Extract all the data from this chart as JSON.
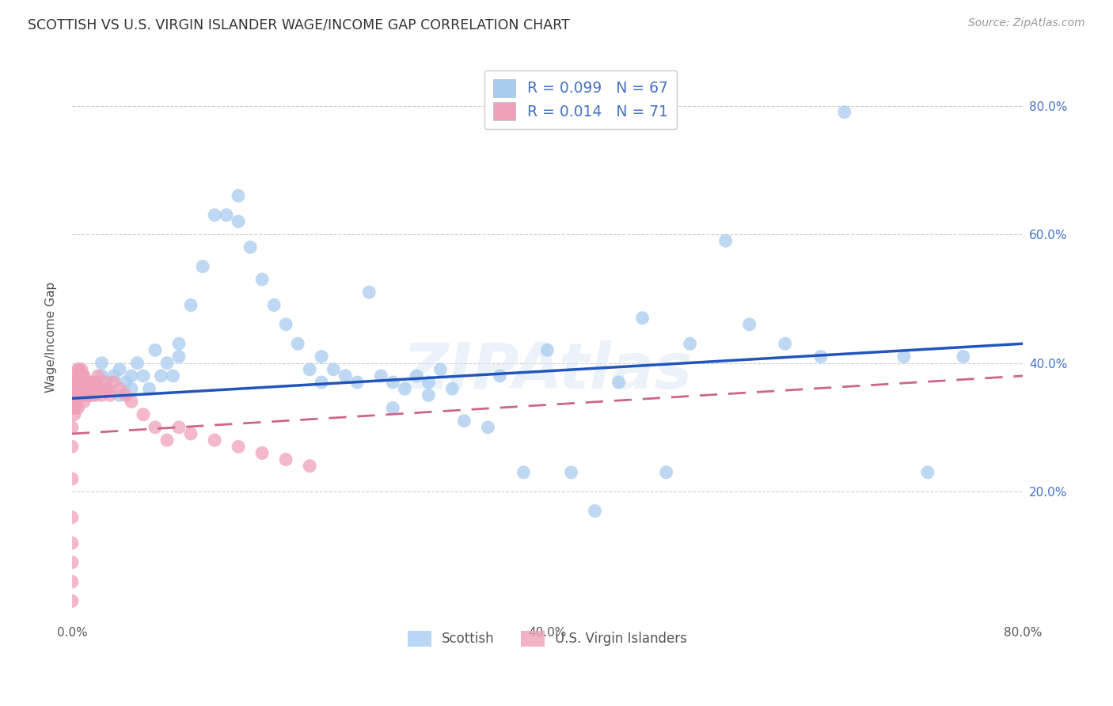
{
  "title": "SCOTTISH VS U.S. VIRGIN ISLANDER WAGE/INCOME GAP CORRELATION CHART",
  "source": "Source: ZipAtlas.com",
  "ylabel": "Wage/Income Gap",
  "blue_R": "0.099",
  "blue_N": "67",
  "pink_R": "0.014",
  "pink_N": "71",
  "blue_color": "#A8CCF0",
  "pink_color": "#F0A0B8",
  "blue_line_color": "#2255BB",
  "pink_line_color": "#CC6688",
  "legend_label_blue": "Scottish",
  "legend_label_pink": "U.S. Virgin Islanders",
  "ytick_values": [
    0.2,
    0.4,
    0.6,
    0.8
  ],
  "ytick_labels": [
    "20.0%",
    "40.0%",
    "60.0%",
    "80.0%"
  ],
  "xtick_values": [
    0.0,
    0.1,
    0.2,
    0.3,
    0.4,
    0.5,
    0.6,
    0.7,
    0.8
  ],
  "xtick_labels": [
    "0.0%",
    "",
    "",
    "",
    "40.0%",
    "",
    "",
    "",
    "80.0%"
  ],
  "xlim": [
    0.0,
    0.8
  ],
  "ylim": [
    0.0,
    0.88
  ],
  "blue_x": [
    0.01,
    0.015,
    0.02,
    0.025,
    0.025,
    0.03,
    0.035,
    0.04,
    0.04,
    0.045,
    0.05,
    0.05,
    0.055,
    0.06,
    0.065,
    0.07,
    0.075,
    0.08,
    0.085,
    0.09,
    0.09,
    0.1,
    0.11,
    0.12,
    0.13,
    0.14,
    0.14,
    0.15,
    0.16,
    0.17,
    0.18,
    0.19,
    0.2,
    0.21,
    0.21,
    0.22,
    0.23,
    0.24,
    0.25,
    0.26,
    0.27,
    0.27,
    0.28,
    0.29,
    0.3,
    0.3,
    0.31,
    0.32,
    0.33,
    0.35,
    0.36,
    0.38,
    0.4,
    0.42,
    0.44,
    0.46,
    0.48,
    0.5,
    0.52,
    0.55,
    0.57,
    0.6,
    0.63,
    0.65,
    0.7,
    0.72,
    0.75
  ],
  "blue_y": [
    0.36,
    0.35,
    0.37,
    0.4,
    0.38,
    0.36,
    0.38,
    0.35,
    0.39,
    0.37,
    0.38,
    0.36,
    0.4,
    0.38,
    0.36,
    0.42,
    0.38,
    0.4,
    0.38,
    0.41,
    0.43,
    0.49,
    0.55,
    0.63,
    0.63,
    0.66,
    0.62,
    0.58,
    0.53,
    0.49,
    0.46,
    0.43,
    0.39,
    0.41,
    0.37,
    0.39,
    0.38,
    0.37,
    0.51,
    0.38,
    0.37,
    0.33,
    0.36,
    0.38,
    0.37,
    0.35,
    0.39,
    0.36,
    0.31,
    0.3,
    0.38,
    0.23,
    0.42,
    0.23,
    0.17,
    0.37,
    0.47,
    0.23,
    0.43,
    0.59,
    0.46,
    0.43,
    0.41,
    0.79,
    0.41,
    0.23,
    0.41
  ],
  "pink_x": [
    0.0,
    0.0,
    0.0,
    0.0,
    0.0,
    0.0,
    0.0,
    0.0,
    0.0,
    0.0,
    0.002,
    0.002,
    0.002,
    0.002,
    0.002,
    0.003,
    0.003,
    0.004,
    0.004,
    0.004,
    0.005,
    0.005,
    0.005,
    0.005,
    0.006,
    0.006,
    0.006,
    0.007,
    0.007,
    0.008,
    0.008,
    0.008,
    0.009,
    0.009,
    0.01,
    0.01,
    0.01,
    0.011,
    0.011,
    0.012,
    0.012,
    0.013,
    0.014,
    0.015,
    0.016,
    0.017,
    0.018,
    0.019,
    0.02,
    0.02,
    0.021,
    0.022,
    0.023,
    0.025,
    0.028,
    0.03,
    0.032,
    0.035,
    0.04,
    0.045,
    0.05,
    0.06,
    0.07,
    0.08,
    0.09,
    0.1,
    0.12,
    0.14,
    0.16,
    0.18,
    0.2
  ],
  "pink_y": [
    0.03,
    0.06,
    0.09,
    0.12,
    0.16,
    0.22,
    0.27,
    0.3,
    0.33,
    0.36,
    0.32,
    0.34,
    0.35,
    0.37,
    0.38,
    0.33,
    0.35,
    0.34,
    0.36,
    0.38,
    0.33,
    0.35,
    0.37,
    0.39,
    0.35,
    0.37,
    0.39,
    0.36,
    0.38,
    0.35,
    0.37,
    0.39,
    0.36,
    0.38,
    0.34,
    0.36,
    0.38,
    0.35,
    0.37,
    0.35,
    0.37,
    0.36,
    0.35,
    0.37,
    0.36,
    0.35,
    0.37,
    0.36,
    0.35,
    0.37,
    0.36,
    0.38,
    0.36,
    0.35,
    0.37,
    0.36,
    0.35,
    0.37,
    0.36,
    0.35,
    0.34,
    0.32,
    0.3,
    0.28,
    0.3,
    0.29,
    0.28,
    0.27,
    0.26,
    0.25,
    0.24
  ],
  "blue_trend_x": [
    0.0,
    0.8
  ],
  "blue_trend_y": [
    0.345,
    0.43
  ],
  "pink_trend_x": [
    0.0,
    0.8
  ],
  "pink_trend_y": [
    0.29,
    0.38
  ]
}
